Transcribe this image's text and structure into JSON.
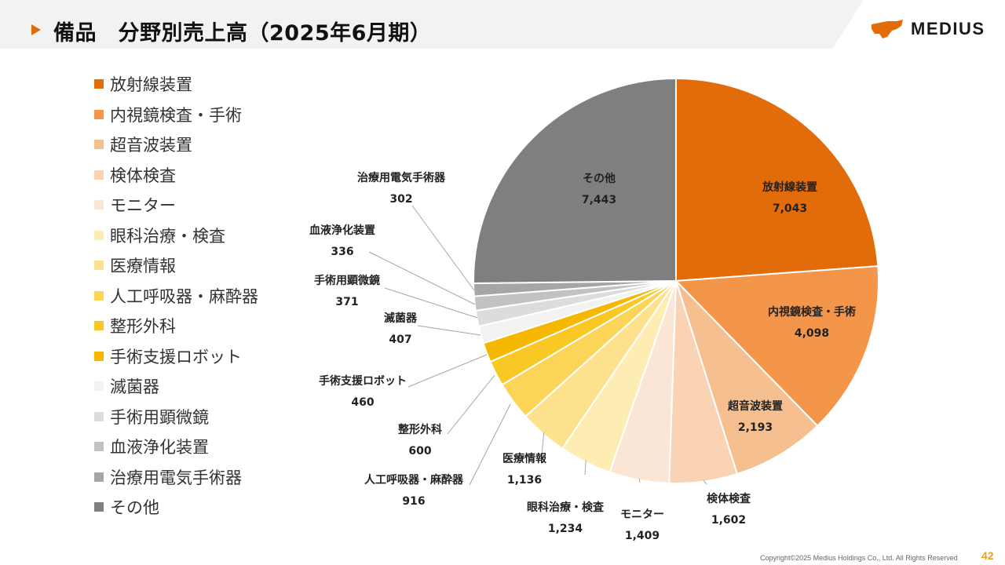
{
  "header": {
    "title": "備品　分野別売上高（2025年6月期）",
    "logo_text": "MEDIUS",
    "accent_color": "#E36C0A"
  },
  "footer": {
    "copyright": "Copyright©2025 Medius Holdings Co., Ltd. All Rights Reserved",
    "page_number": "42"
  },
  "chart_data": {
    "type": "pie",
    "start_angle_deg": 0,
    "direction": "clockwise",
    "legend_position": "left",
    "slices": [
      {
        "label": "放射線装置",
        "value": 7043,
        "display": "7,043",
        "color": "#E36C0A"
      },
      {
        "label": "内視鏡検査・手術",
        "value": 4098,
        "display": "4,098",
        "color": "#F4964A"
      },
      {
        "label": "超音波装置",
        "value": 2193,
        "display": "2,193",
        "color": "#F6BF8F"
      },
      {
        "label": "検体検査",
        "value": 1602,
        "display": "1,602",
        "color": "#F9D3B4"
      },
      {
        "label": "モニター",
        "value": 1409,
        "display": "1,409",
        "color": "#FBE6D6"
      },
      {
        "label": "眼科治療・検査",
        "value": 1234,
        "display": "1,234",
        "color": "#FDEDB2"
      },
      {
        "label": "医療情報",
        "value": 1136,
        "display": "1,136",
        "color": "#FDE18C"
      },
      {
        "label": "人工呼吸器・麻酔器",
        "value": 916,
        "display": "916",
        "color": "#FCD558"
      },
      {
        "label": "整形外科",
        "value": 600,
        "display": "600",
        "color": "#F9C824"
      },
      {
        "label": "手術支援ロボット",
        "value": 460,
        "display": "460",
        "color": "#F5B700"
      },
      {
        "label": "滅菌器",
        "value": 407,
        "display": "407",
        "color": "#F2F2F2"
      },
      {
        "label": "手術用顕微鏡",
        "value": 371,
        "display": "371",
        "color": "#DCDCDC"
      },
      {
        "label": "血液浄化装置",
        "value": 336,
        "display": "336",
        "color": "#C2C2C2"
      },
      {
        "label": "治療用電気手術器",
        "value": 302,
        "display": "302",
        "color": "#A6A6A6"
      },
      {
        "label": "その他",
        "value": 7443,
        "display": "7,443",
        "color": "#7F7F7F"
      }
    ]
  }
}
